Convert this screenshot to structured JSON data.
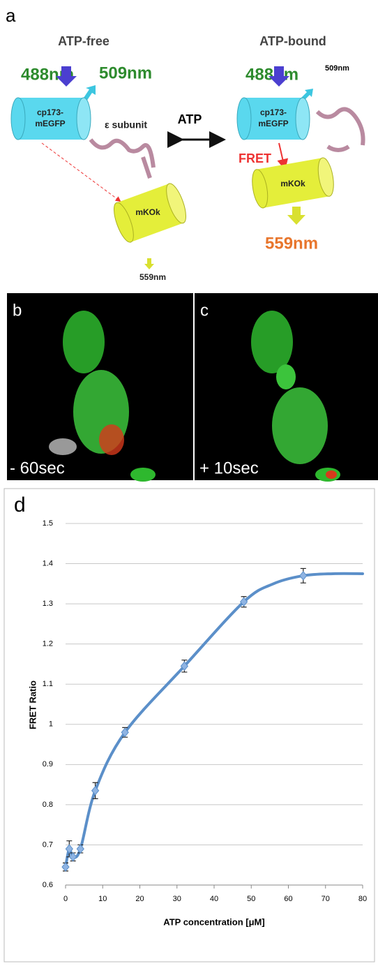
{
  "panel_a": {
    "label": "a",
    "left_title": "ATP-free",
    "right_title": "ATP-bound",
    "arrow_label": "ATP",
    "left": {
      "excitation": "488nm",
      "emission_donor": "509nm",
      "donor": [
        "cp173-",
        "mEGFP"
      ],
      "subunit": "ε subunit",
      "acceptor": "mKOk",
      "emission_acceptor": "559nm"
    },
    "right": {
      "excitation": "488nm",
      "emission_donor": "509nm",
      "donor": [
        "cp173-",
        "mEGFP"
      ],
      "fret": "FRET",
      "acceptor": "mKOk",
      "emission_acceptor": "559nm"
    }
  },
  "panel_b": {
    "label": "b",
    "time": "- 60sec"
  },
  "panel_c": {
    "label": "c",
    "time": "+ 10sec"
  },
  "panel_d": {
    "label": "d"
  },
  "chart_data": {
    "type": "scatter",
    "x_label": "ATP  concentration [μM]",
    "y_label": "FRET Ratio",
    "color": "#5b8fc9",
    "x": [
      0,
      1,
      2,
      4,
      8,
      16,
      32,
      48,
      64
    ],
    "values": [
      0.645,
      0.69,
      0.67,
      0.69,
      0.835,
      0.98,
      1.145,
      1.305,
      1.37
    ],
    "errors": [
      0.01,
      0.02,
      0.01,
      0.01,
      0.02,
      0.012,
      0.015,
      0.013,
      0.018
    ],
    "curve": {
      "x": [
        0,
        1,
        2,
        4,
        8,
        16,
        32,
        48,
        56,
        64,
        72,
        80
      ],
      "values": [
        0.645,
        0.69,
        0.67,
        0.69,
        0.835,
        0.98,
        1.145,
        1.305,
        1.35,
        1.37,
        1.375,
        1.375
      ]
    },
    "xlim": [
      0,
      80
    ],
    "xticks": [
      0,
      10,
      20,
      30,
      40,
      50,
      60,
      70,
      80
    ],
    "ylim": [
      0.6,
      1.5
    ],
    "yticks": [
      0.6,
      0.7,
      0.8,
      0.9,
      1,
      1.1,
      1.2,
      1.3,
      1.4,
      1.5
    ],
    "grid": true
  }
}
